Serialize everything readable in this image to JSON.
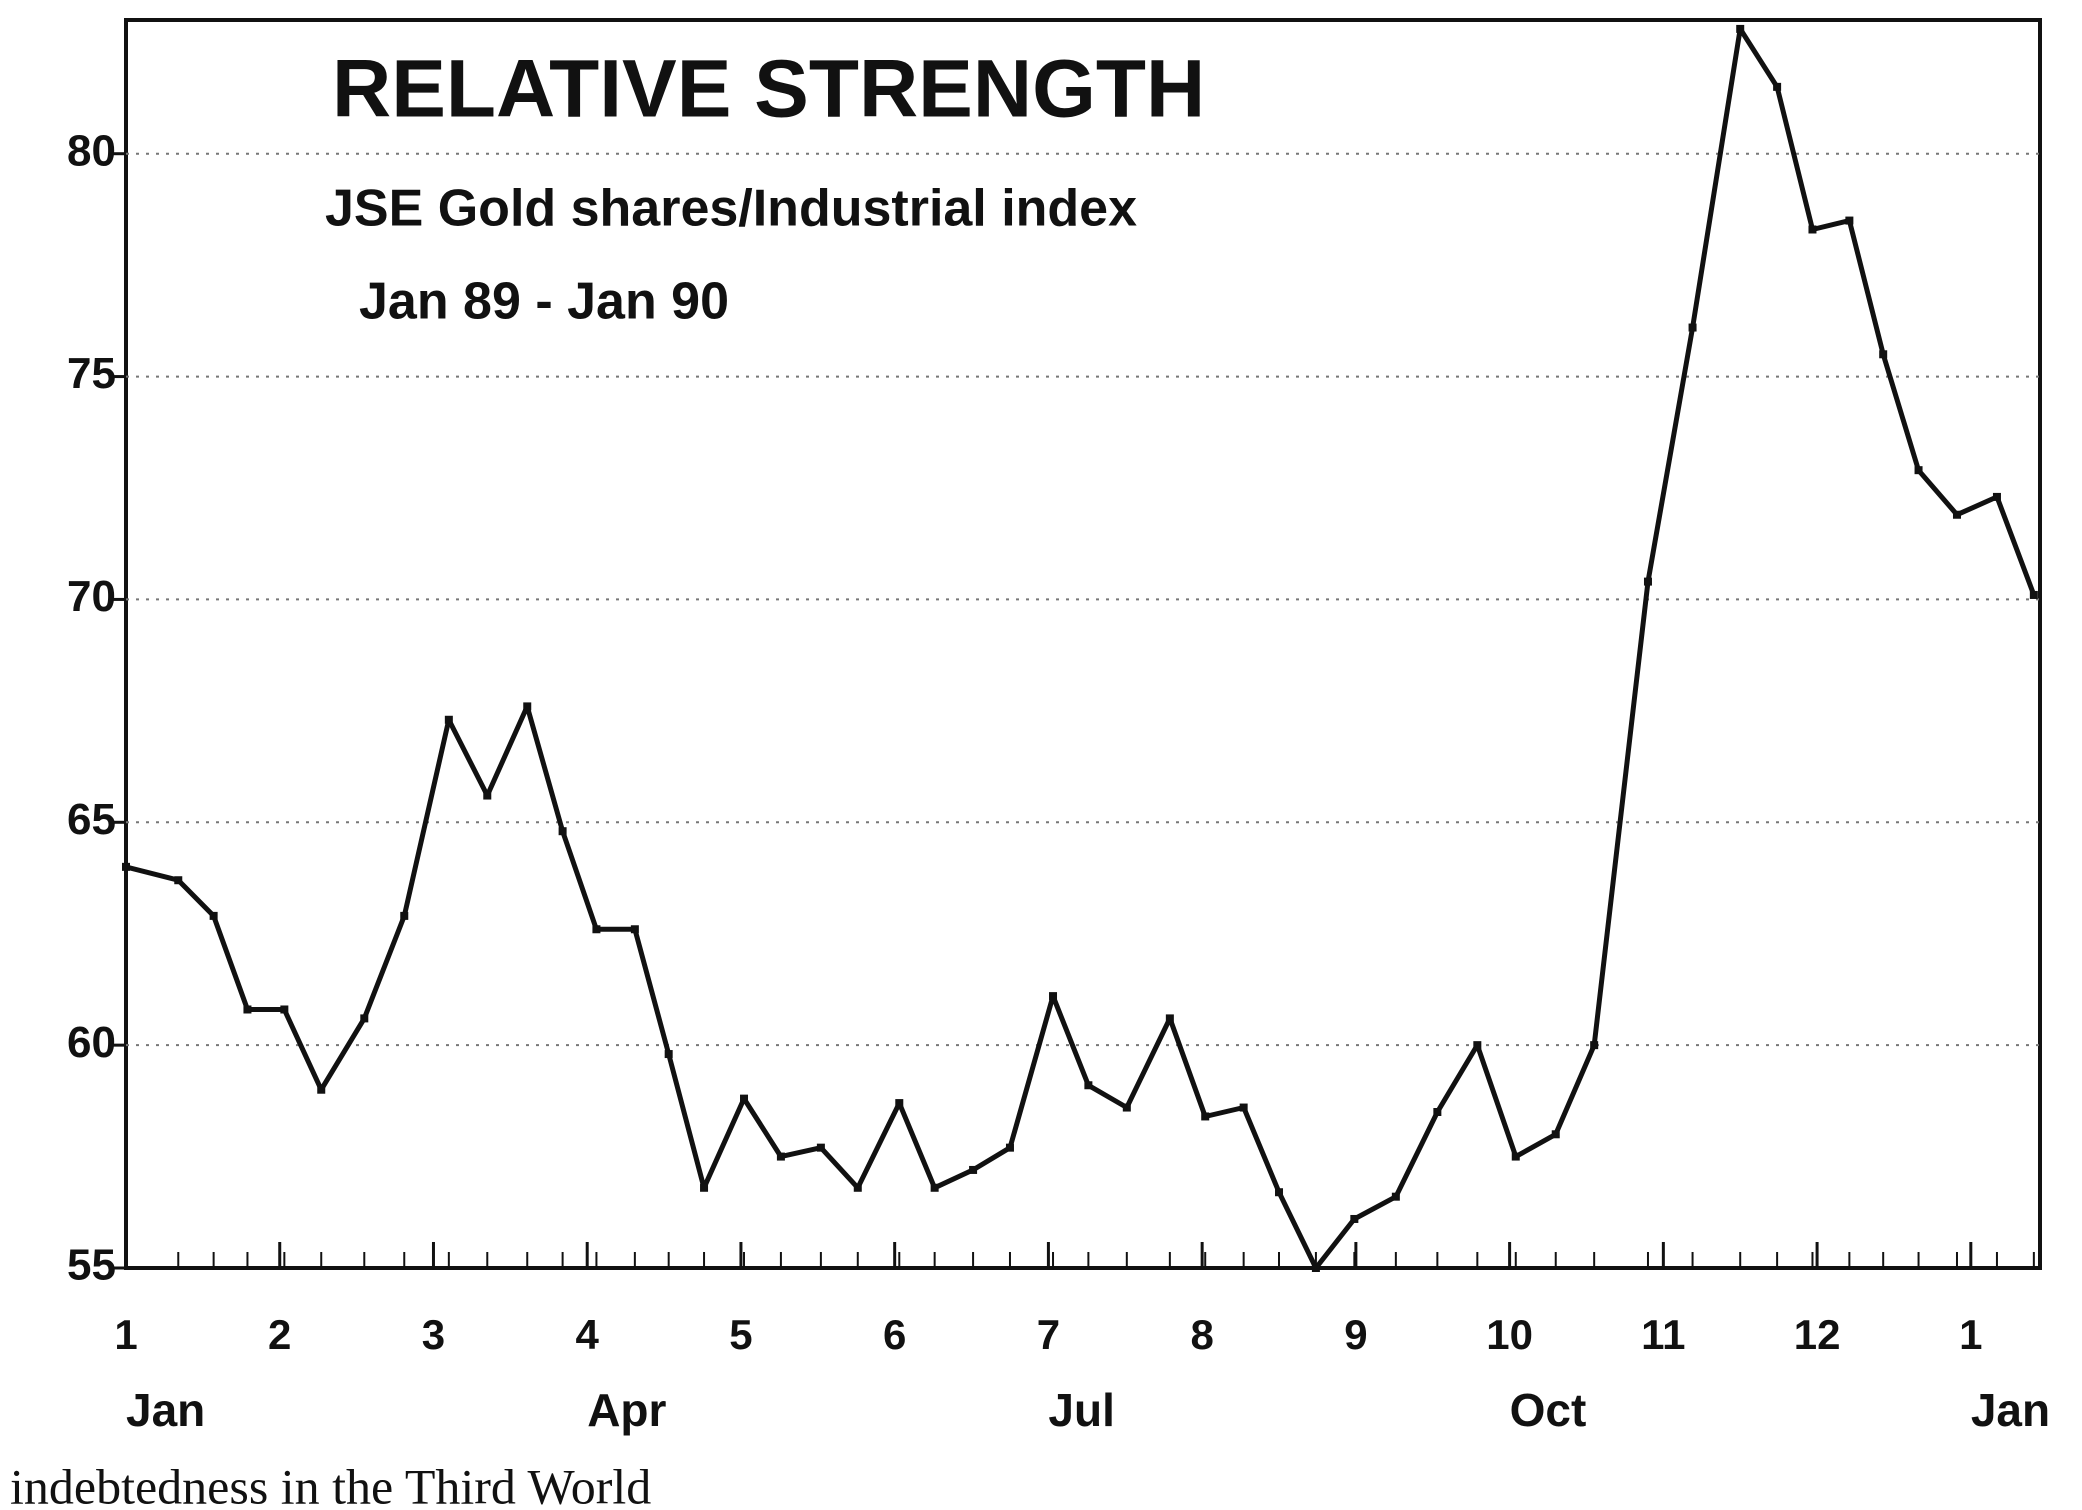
{
  "chart_data": {
    "type": "line",
    "title": "RELATIVE STRENGTH",
    "subtitle": "JSE Gold shares/Industrial index",
    "period": "Jan 89 - Jan 90",
    "footer_text": "indebtedness in the Third World",
    "x": [
      1.0,
      1.34,
      1.57,
      1.79,
      2.03,
      2.27,
      2.55,
      2.81,
      3.1,
      3.35,
      3.61,
      3.84,
      4.06,
      4.31,
      4.53,
      4.76,
      5.02,
      5.26,
      5.52,
      5.76,
      6.03,
      6.26,
      6.51,
      6.75,
      7.03,
      7.26,
      7.51,
      7.79,
      8.02,
      8.27,
      8.5,
      8.74,
      8.99,
      9.26,
      9.53,
      9.79,
      10.04,
      10.3,
      10.55,
      10.9,
      11.19,
      11.5,
      11.74,
      11.97,
      12.21,
      12.43,
      12.66,
      12.91,
      13.17,
      13.41
    ],
    "series": [
      {
        "color": "#111111",
        "values": [
          64.0,
          63.7,
          62.9,
          60.8,
          60.8,
          59.0,
          60.6,
          62.9,
          67.3,
          65.6,
          67.6,
          64.8,
          62.6,
          62.6,
          59.8,
          56.8,
          58.8,
          57.5,
          57.7,
          56.8,
          58.7,
          56.8,
          57.2,
          57.7,
          61.1,
          59.1,
          58.6,
          60.6,
          58.4,
          58.6,
          56.7,
          55.0,
          56.1,
          56.6,
          58.5,
          60.0,
          57.5,
          58.0,
          60.0,
          70.4,
          76.1,
          82.8,
          81.5,
          78.3,
          78.5,
          75.5,
          72.9,
          71.9,
          72.3,
          70.1
        ]
      }
    ],
    "xlim": [
      1,
      13.45
    ],
    "xticks": [
      1,
      2,
      3,
      4,
      5,
      6,
      7,
      8,
      9,
      10,
      11,
      12,
      {
        "value": 13,
        "label": "1"
      }
    ],
    "xtick_groups": [
      {
        "value": 1,
        "label": "Jan"
      },
      {
        "value": 4,
        "label": "Apr"
      },
      {
        "value": 7,
        "label": "Jul"
      },
      {
        "value": 10,
        "label": "Oct"
      },
      {
        "value": 13,
        "label": "Jan"
      }
    ],
    "ylim": [
      55,
      83
    ],
    "yticks": [
      55,
      60,
      65,
      70,
      75,
      80
    ],
    "grid": true
  }
}
